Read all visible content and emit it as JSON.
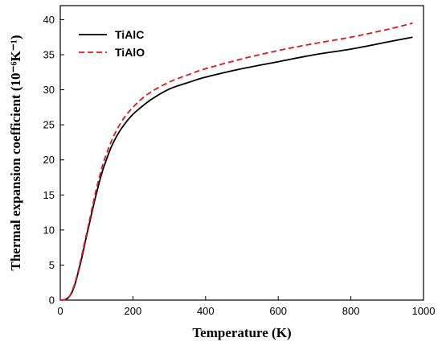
{
  "chart_data": {
    "type": "line",
    "xlabel": "Temperature (K)",
    "ylabel": "Thermal expansion coefficient (10⁻⁶K⁻¹)",
    "xlim": [
      0,
      1000
    ],
    "ylim": [
      0,
      42
    ],
    "xticks": [
      0,
      200,
      400,
      600,
      800,
      1000
    ],
    "yticks": [
      0,
      5,
      10,
      15,
      20,
      25,
      30,
      35,
      40
    ],
    "grid": false,
    "legend_position": "top-left",
    "series": [
      {
        "name": "TiAlC",
        "color": "#000000",
        "dash": "solid",
        "x": [
          0,
          10,
          20,
          30,
          40,
          50,
          60,
          70,
          80,
          90,
          100,
          110,
          120,
          140,
          160,
          180,
          200,
          220,
          250,
          300,
          350,
          400,
          500,
          600,
          700,
          800,
          900,
          970
        ],
        "y": [
          0,
          0.05,
          0.25,
          0.9,
          2.2,
          4.1,
          6.2,
          8.6,
          10.9,
          13.2,
          15.3,
          17.3,
          19.0,
          21.8,
          23.8,
          25.3,
          26.5,
          27.4,
          28.6,
          30.1,
          31.0,
          31.8,
          33.0,
          34.0,
          35.0,
          35.8,
          36.8,
          37.5
        ]
      },
      {
        "name": "TiAlO",
        "color": "#e8141b",
        "dash": "dashed",
        "x": [
          0,
          10,
          20,
          30,
          40,
          50,
          60,
          70,
          80,
          90,
          100,
          110,
          120,
          140,
          160,
          180,
          200,
          220,
          250,
          300,
          350,
          400,
          500,
          600,
          700,
          800,
          900,
          970
        ],
        "y": [
          0,
          0.05,
          0.25,
          1.0,
          2.4,
          4.3,
          6.6,
          8.9,
          11.3,
          13.7,
          16.0,
          18.0,
          19.8,
          22.6,
          24.7,
          26.3,
          27.5,
          28.5,
          29.7,
          31.1,
          32.1,
          33.0,
          34.4,
          35.6,
          36.6,
          37.5,
          38.6,
          39.5
        ]
      }
    ]
  }
}
